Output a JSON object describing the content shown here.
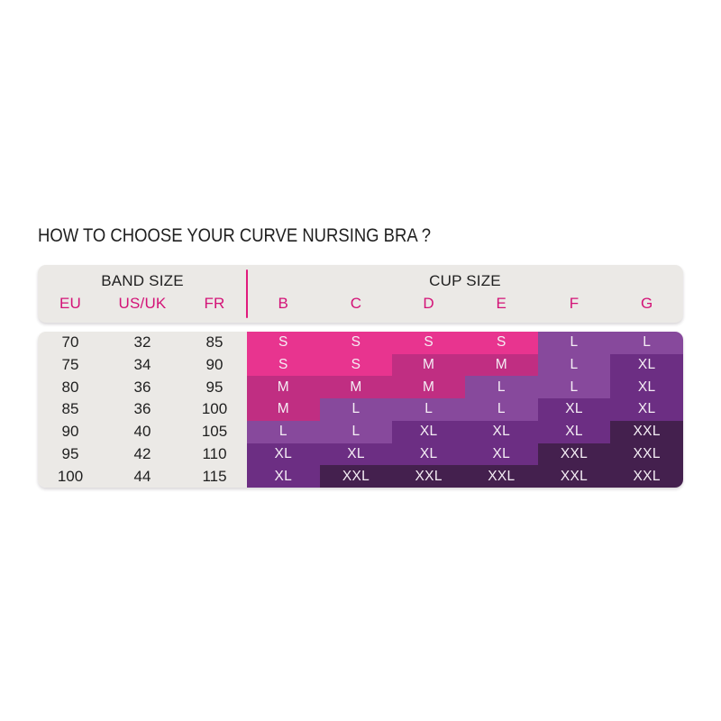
{
  "chart_data": {
    "type": "table",
    "title": "HOW TO CHOOSE YOUR CURVE NURSING BRA ?",
    "header_groups": {
      "band": "BAND SIZE",
      "cup": "CUP SIZE"
    },
    "band_columns": [
      "EU",
      "US/UK",
      "FR"
    ],
    "cup_columns": [
      "B",
      "C",
      "D",
      "E",
      "F",
      "G"
    ],
    "rows": [
      {
        "eu": "70",
        "usuk": "32",
        "fr": "85",
        "cups": [
          "S",
          "S",
          "S",
          "S",
          "L",
          "L"
        ]
      },
      {
        "eu": "75",
        "usuk": "34",
        "fr": "90",
        "cups": [
          "S",
          "S",
          "M",
          "M",
          "L",
          "XL"
        ]
      },
      {
        "eu": "80",
        "usuk": "36",
        "fr": "95",
        "cups": [
          "M",
          "M",
          "M",
          "L",
          "L",
          "XL"
        ]
      },
      {
        "eu": "85",
        "usuk": "36",
        "fr": "100",
        "cups": [
          "M",
          "L",
          "L",
          "L",
          "XL",
          "XL"
        ]
      },
      {
        "eu": "90",
        "usuk": "40",
        "fr": "105",
        "cups": [
          "L",
          "L",
          "XL",
          "XL",
          "XL",
          "XXL"
        ]
      },
      {
        "eu": "95",
        "usuk": "42",
        "fr": "110",
        "cups": [
          "XL",
          "XL",
          "XL",
          "XL",
          "XXL",
          "XXL"
        ]
      },
      {
        "eu": "100",
        "usuk": "44",
        "fr": "115",
        "cups": [
          "XL",
          "XXL",
          "XXL",
          "XXL",
          "XXL",
          "XXL"
        ]
      }
    ],
    "size_colors": {
      "S": "#e8348f",
      "M": "#c02e82",
      "L": "#87499c",
      "XL": "#6c2e83",
      "XXL": "#44204e"
    }
  },
  "colors": {
    "accent_pink": "#d31277",
    "divider_pink": "#e11a7d",
    "header_bg": "#ebe9e6",
    "text_dark": "#1f1f1f",
    "cell_text": "#f5eef5",
    "page_bg": "#ffffff"
  }
}
